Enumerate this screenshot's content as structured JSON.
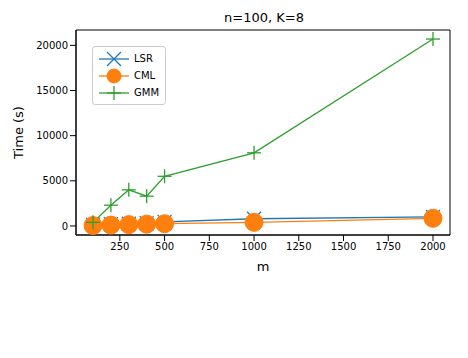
{
  "chart_data": {
    "type": "line",
    "title": "n=100, K=8",
    "x_label": "m",
    "y_label": "Time (s)",
    "x": [
      100,
      200,
      300,
      400,
      500,
      1000,
      2000
    ],
    "series": [
      {
        "name": "LSR",
        "color": "#1f77b4",
        "marker": "x",
        "values": [
          150,
          200,
          250,
          300,
          450,
          800,
          1000
        ]
      },
      {
        "name": "CML",
        "color": "#ff7f0e",
        "marker": "o",
        "values": [
          50,
          100,
          150,
          200,
          250,
          400,
          850
        ]
      },
      {
        "name": "GMM",
        "color": "#2ca02c",
        "marker": "+",
        "values": [
          400,
          2300,
          4000,
          3300,
          5500,
          8100,
          20700
        ]
      }
    ],
    "xlim": [
      5,
      2095
    ],
    "ylim": [
      -1000,
      21700
    ],
    "xticks": [
      250,
      500,
      750,
      1000,
      1250,
      1500,
      1750,
      2000
    ],
    "yticks": [
      0,
      5000,
      10000,
      15000,
      20000
    ],
    "legend": "upper left"
  }
}
